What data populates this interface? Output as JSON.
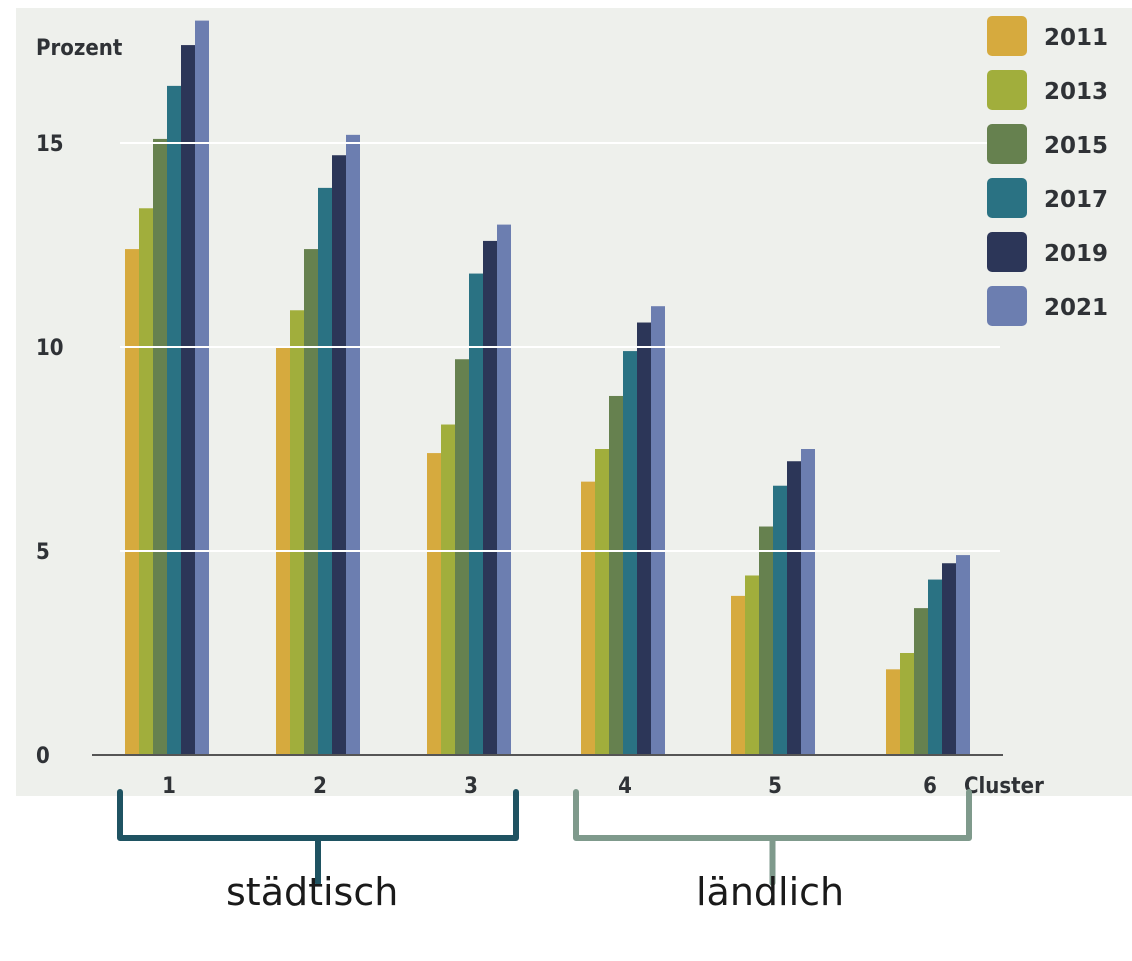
{
  "chart_data": {
    "type": "bar",
    "ylabel": "Prozent",
    "xlabel": "Cluster",
    "ylim": [
      0,
      17.5
    ],
    "yticks": [
      0,
      5,
      10,
      15
    ],
    "grid": "white horizontal lines drawn across bars",
    "legend_position": "top-right",
    "categories": [
      "1",
      "2",
      "3",
      "4",
      "5",
      "6"
    ],
    "series": [
      {
        "name": "2011",
        "color": "#d6aa3e",
        "values": [
          12.4,
          10.0,
          7.4,
          6.7,
          3.9,
          2.1
        ]
      },
      {
        "name": "2013",
        "color": "#a1ae3c",
        "values": [
          13.4,
          10.9,
          8.1,
          7.5,
          4.4,
          2.5
        ]
      },
      {
        "name": "2015",
        "color": "#66814f",
        "values": [
          15.1,
          12.4,
          9.7,
          8.8,
          5.6,
          3.6
        ]
      },
      {
        "name": "2017",
        "color": "#2a7283",
        "values": [
          16.4,
          13.9,
          11.8,
          9.9,
          6.6,
          4.3
        ]
      },
      {
        "name": "2019",
        "color": "#2c3658",
        "values": [
          17.4,
          14.7,
          12.6,
          10.6,
          7.2,
          4.7
        ]
      },
      {
        "name": "2021",
        "color": "#6c7eb0",
        "values": [
          18.0,
          15.2,
          13.0,
          11.0,
          7.5,
          4.9
        ]
      }
    ],
    "groups": [
      {
        "label": "städtisch",
        "clusters": [
          "1",
          "2",
          "3"
        ],
        "color": "#1f5362"
      },
      {
        "label": "ländlich",
        "clusters": [
          "4",
          "5",
          "6"
        ],
        "color": "#7f9a8c"
      }
    ]
  }
}
